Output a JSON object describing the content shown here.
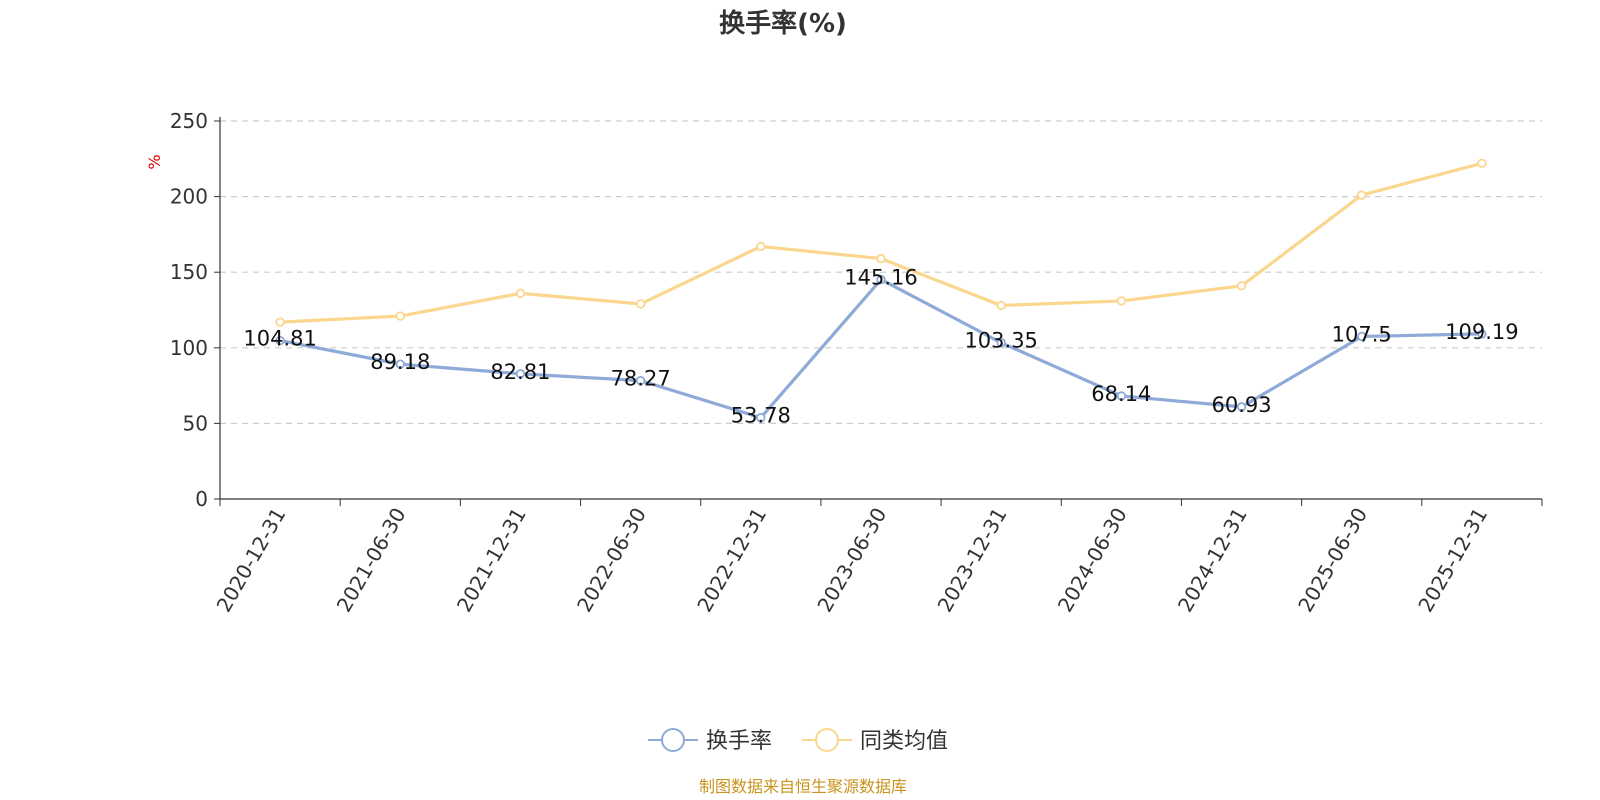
{
  "chart_data": {
    "type": "line",
    "title": "换手率(%)",
    "ylabel": "%",
    "ylim": [
      0,
      250
    ],
    "yticks": [
      0,
      50,
      100,
      150,
      200,
      250
    ],
    "grid": true,
    "legend_position": "bottom-center",
    "categories": [
      "2020-12-31",
      "2021-06-30",
      "2021-12-31",
      "2022-06-30",
      "2022-12-31",
      "2023-06-30",
      "2023-12-31",
      "2024-06-30",
      "2024-12-31",
      "2025-06-30",
      "2025-12-31"
    ],
    "series": [
      {
        "name": "换手率",
        "color": "#8eaad8",
        "values": [
          104.81,
          89.18,
          82.81,
          78.27,
          53.78,
          145.16,
          103.35,
          68.14,
          60.93,
          107.5,
          109.19
        ],
        "labels": [
          "104.81",
          "89.18",
          "82.81",
          "78.27",
          "53.78",
          "145.16",
          "103.35",
          "68.14",
          "60.93",
          "107.5",
          "109.19"
        ]
      },
      {
        "name": "同类均值",
        "color": "#fbd68f",
        "values": [
          117,
          121,
          136,
          129,
          167,
          159,
          128,
          131,
          141,
          201,
          222
        ]
      }
    ]
  },
  "source_text": "制图数据来自恒生聚源数据库",
  "colors": {
    "unit": "#e00000",
    "source": "#c8941e",
    "axis": "#333333",
    "grid": "#cccccc"
  }
}
